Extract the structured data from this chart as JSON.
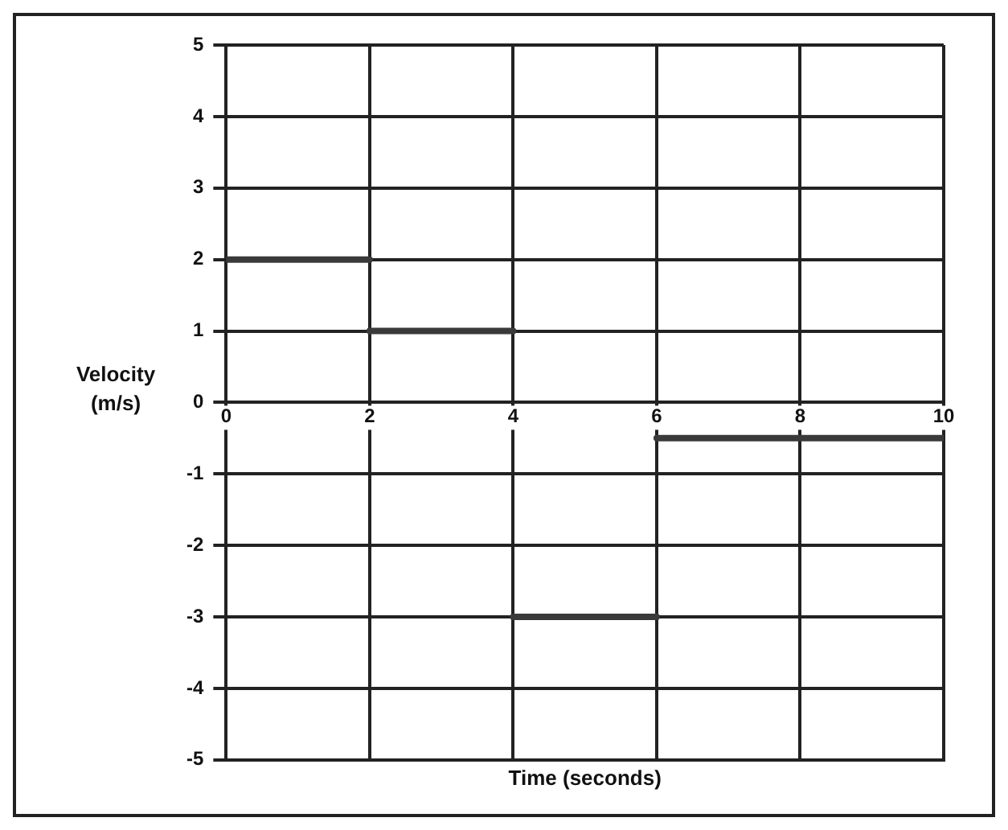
{
  "chart_data": {
    "type": "line",
    "xlabel": "Time (seconds)",
    "ylabel": "Velocity (m/s)",
    "series": [
      {
        "color": "#3a3a3a",
        "x": [
          0,
          2
        ],
        "values": [
          2,
          2
        ]
      },
      {
        "color": "#3a3a3a",
        "x": [
          2,
          4
        ],
        "values": [
          1,
          1
        ]
      },
      {
        "color": "#3a3a3a",
        "x": [
          4,
          6
        ],
        "values": [
          -3,
          -3
        ]
      },
      {
        "color": "#3a3a3a",
        "x": [
          6,
          10
        ],
        "values": [
          -0.5,
          -0.5
        ]
      }
    ],
    "xlim": [
      0,
      10
    ],
    "xticks": [
      0,
      2,
      4,
      6,
      8,
      10
    ],
    "ylim": [
      -5,
      5
    ],
    "yticks": [
      -5,
      -4,
      -3,
      -2,
      -1,
      0,
      1,
      2,
      3,
      4,
      5
    ],
    "grid": true,
    "legend": false,
    "marker": "none",
    "line_style": "solid"
  }
}
